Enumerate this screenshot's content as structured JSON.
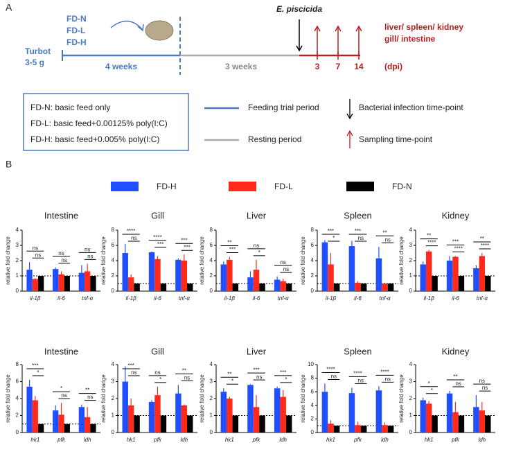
{
  "diagram": {
    "panel": "A",
    "fish": [
      "Turbot",
      "3-5 g"
    ],
    "groups": [
      "FD-N",
      "FD-L",
      "FD-H"
    ],
    "infection": "E. piscicida",
    "periods": [
      "4 weeks",
      "3 weeks"
    ],
    "days": [
      "3",
      "7",
      "14"
    ],
    "unit": "(dpi)",
    "tissues": [
      "liver/ spleen/ kidney",
      "gill/ intestine"
    ],
    "notes": [
      "FD-N: basic feed only",
      "FD-L: basic feed+0.00125% poly(I:C)",
      "FD-H: basic feed+0.005% poly(I:C)"
    ],
    "keys": [
      "Feeding trial period",
      "Resting  period",
      "Bacterial infection time-point",
      "Sampling time-point"
    ]
  },
  "panel_b": "B",
  "legend": [
    {
      "name": "FD-H",
      "color": "#1f4fff"
    },
    {
      "name": "FD-L",
      "color": "#ff2a1a"
    },
    {
      "name": "FD-N",
      "color": "#000000"
    }
  ],
  "chart_data": [
    {
      "type": "bar",
      "title": "Intestine",
      "ylabel": "relative fold change",
      "categories": [
        "il-1β",
        "il-6",
        "tnf-α"
      ],
      "ylim": [
        0,
        4
      ],
      "yticks": [
        0,
        1,
        2,
        3,
        4
      ],
      "refline": 1,
      "series": [
        {
          "values": [
            1.4,
            1.45,
            1.2
          ],
          "errors": [
            0.5,
            0.1,
            0.5
          ]
        },
        {
          "values": [
            0.8,
            1.1,
            1.3
          ],
          "errors": [
            0.05,
            0.2,
            0.5
          ]
        },
        {
          "values": [
            1,
            1,
            1
          ],
          "errors": [
            0,
            0,
            0
          ]
        }
      ],
      "brackets": [
        [
          {
            "text": "ns",
            "pair": [
              0,
              2
            ]
          },
          {
            "text": "ns",
            "pair": [
              1,
              2
            ]
          }
        ],
        [
          {
            "text": "ns",
            "pair": [
              0,
              2
            ]
          },
          {
            "text": "ns",
            "pair": [
              1,
              2
            ]
          }
        ],
        [
          {
            "text": "ns",
            "pair": [
              0,
              2
            ]
          },
          {
            "text": "ns",
            "pair": [
              1,
              2
            ]
          }
        ]
      ]
    },
    {
      "type": "bar",
      "title": "Gill",
      "ylabel": "relative fold change",
      "categories": [
        "il-1β",
        "il-6",
        "tnf-α"
      ],
      "ylim": [
        0,
        8
      ],
      "yticks": [
        0,
        2,
        4,
        6,
        8
      ],
      "refline": 1,
      "series": [
        {
          "values": [
            5.0,
            5.1,
            4.1
          ],
          "errors": [
            1.2,
            0.1,
            0.2
          ]
        },
        {
          "values": [
            1.8,
            4.2,
            4.0
          ],
          "errors": [
            0.4,
            0.4,
            0.8
          ]
        },
        {
          "values": [
            1,
            1,
            1
          ],
          "errors": [
            0,
            0,
            0
          ]
        }
      ],
      "brackets": [
        [
          {
            "text": "****",
            "pair": [
              0,
              2
            ]
          },
          {
            "text": "ns",
            "pair": [
              1,
              2
            ]
          }
        ],
        [
          {
            "text": "****",
            "pair": [
              0,
              2
            ]
          },
          {
            "text": "***",
            "pair": [
              1,
              2
            ]
          }
        ],
        [
          {
            "text": "***",
            "pair": [
              0,
              2
            ]
          },
          {
            "text": "***",
            "pair": [
              1,
              2
            ]
          }
        ]
      ]
    },
    {
      "type": "bar",
      "title": "Liver",
      "ylabel": "relative fold change",
      "categories": [
        "il-1β",
        "il-6",
        "tnf-α"
      ],
      "ylim": [
        0,
        8
      ],
      "yticks": [
        0,
        2,
        4,
        6,
        8
      ],
      "refline": 1,
      "series": [
        {
          "values": [
            3.5,
            1.8,
            1.5
          ],
          "errors": [
            0.4,
            0.8,
            0.4
          ]
        },
        {
          "values": [
            4.1,
            2.8,
            1.3
          ],
          "errors": [
            0.4,
            1.3,
            0.3
          ]
        },
        {
          "values": [
            1,
            1,
            1
          ],
          "errors": [
            0,
            0,
            0
          ]
        }
      ],
      "brackets": [
        [
          {
            "text": "**",
            "pair": [
              0,
              2
            ]
          },
          {
            "text": "***",
            "pair": [
              1,
              2
            ]
          }
        ],
        [
          {
            "text": "ns",
            "pair": [
              0,
              2
            ]
          },
          {
            "text": "*",
            "pair": [
              1,
              2
            ]
          }
        ],
        [
          {
            "text": "ns",
            "pair": [
              0,
              2
            ]
          },
          {
            "text": "ns",
            "pair": [
              1,
              2
            ]
          }
        ]
      ]
    },
    {
      "type": "bar",
      "title": "Spleen",
      "ylabel": "relative fold change",
      "categories": [
        "il-1β",
        "il-6",
        "tnf-α"
      ],
      "ylim": [
        0,
        8
      ],
      "yticks": [
        0,
        2,
        4,
        6,
        8
      ],
      "refline": 1,
      "series": [
        {
          "values": [
            6.4,
            5.9,
            4.3
          ],
          "errors": [
            0.3,
            0.7,
            1.5
          ]
        },
        {
          "values": [
            3.5,
            1.1,
            1.0
          ],
          "errors": [
            1.5,
            0.2,
            0.1
          ]
        },
        {
          "values": [
            1,
            1,
            1
          ],
          "errors": [
            0,
            0,
            0
          ]
        }
      ],
      "brackets": [
        [
          {
            "text": "***",
            "pair": [
              0,
              2
            ]
          },
          {
            "text": "*",
            "pair": [
              1,
              2
            ]
          }
        ],
        [
          {
            "text": "***",
            "pair": [
              0,
              2
            ]
          },
          {
            "text": "ns",
            "pair": [
              1,
              2
            ]
          }
        ],
        [
          {
            "text": "**",
            "pair": [
              0,
              2
            ]
          },
          {
            "text": "ns",
            "pair": [
              1,
              2
            ]
          }
        ]
      ]
    },
    {
      "type": "bar",
      "title": "Kidney",
      "ylabel": "relative fold change",
      "categories": [
        "il-1β",
        "il-6",
        "tnf-α"
      ],
      "ylim": [
        0,
        4
      ],
      "yticks": [
        0,
        1,
        2,
        3,
        4
      ],
      "refline": 1,
      "series": [
        {
          "values": [
            1.75,
            2.0,
            1.5
          ],
          "errors": [
            0.2,
            0.3,
            0.2
          ]
        },
        {
          "values": [
            2.6,
            2.25,
            2.3
          ],
          "errors": [
            0.1,
            0.05,
            0.2
          ]
        },
        {
          "values": [
            1,
            1,
            1
          ],
          "errors": [
            0,
            0,
            0
          ]
        }
      ],
      "brackets": [
        [
          {
            "text": "**",
            "pair": [
              0,
              2
            ]
          },
          {
            "text": "****",
            "pair": [
              1,
              2
            ]
          }
        ],
        [
          {
            "text": "***",
            "pair": [
              0,
              2
            ]
          },
          {
            "text": "****",
            "pair": [
              1,
              2
            ]
          }
        ],
        [
          {
            "text": "**",
            "pair": [
              0,
              2
            ]
          },
          {
            "text": "****",
            "pair": [
              1,
              2
            ]
          }
        ]
      ]
    },
    {
      "type": "bar",
      "title": "Intestine",
      "ylabel": "relative fold change",
      "categories": [
        "hk1",
        "pfk",
        "ldh"
      ],
      "ylim": [
        0,
        8
      ],
      "yticks": [
        0,
        2,
        4,
        6,
        8
      ],
      "refline": 1,
      "series": [
        {
          "values": [
            5.4,
            2.6,
            3.0
          ],
          "errors": [
            0.8,
            0.6,
            0.3
          ]
        },
        {
          "values": [
            3.8,
            2.1,
            1.8
          ],
          "errors": [
            0.5,
            1.4,
            1.2
          ]
        },
        {
          "values": [
            1,
            1,
            1
          ],
          "errors": [
            0,
            0,
            0
          ]
        }
      ],
      "brackets": [
        [
          {
            "text": "***",
            "pair": [
              0,
              2
            ]
          },
          {
            "text": "*",
            "pair": [
              1,
              2
            ]
          }
        ],
        [
          {
            "text": "*",
            "pair": [
              0,
              2
            ]
          },
          {
            "text": "ns",
            "pair": [
              1,
              2
            ]
          }
        ],
        [
          {
            "text": "**",
            "pair": [
              0,
              2
            ]
          },
          {
            "text": "ns",
            "pair": [
              1,
              2
            ]
          }
        ]
      ]
    },
    {
      "type": "bar",
      "title": "Gill",
      "ylabel": "relative fold change",
      "categories": [
        "hk1",
        "pfk",
        "ldh"
      ],
      "ylim": [
        0,
        4
      ],
      "yticks": [
        0,
        1,
        2,
        3,
        4
      ],
      "refline": 1,
      "series": [
        {
          "values": [
            3.0,
            1.8,
            2.3
          ],
          "errors": [
            0.9,
            0.1,
            0.5
          ]
        },
        {
          "values": [
            1.6,
            2.2,
            1.6
          ],
          "errors": [
            0.4,
            0.5,
            0.05
          ]
        },
        {
          "values": [
            1,
            1,
            1
          ],
          "errors": [
            0,
            0,
            0
          ]
        }
      ],
      "brackets": [
        [
          {
            "text": "***",
            "pair": [
              0,
              2
            ]
          },
          {
            "text": "ns",
            "pair": [
              1,
              2
            ]
          }
        ],
        [
          {
            "text": "ns",
            "pair": [
              0,
              2
            ]
          },
          {
            "text": "*",
            "pair": [
              1,
              2
            ]
          }
        ],
        [
          {
            "text": "**",
            "pair": [
              0,
              2
            ]
          },
          {
            "text": "ns",
            "pair": [
              1,
              2
            ]
          }
        ]
      ]
    },
    {
      "type": "bar",
      "title": "Liver",
      "ylabel": "relative fold change",
      "categories": [
        "hk1",
        "pfk",
        "ldh"
      ],
      "ylim": [
        0,
        4
      ],
      "yticks": [
        0,
        1,
        2,
        3,
        4
      ],
      "refline": 1,
      "series": [
        {
          "values": [
            2.4,
            2.8,
            2.6
          ],
          "errors": [
            0.2,
            0.05,
            0.1
          ]
        },
        {
          "values": [
            2.0,
            1.5,
            2.1
          ],
          "errors": [
            0.1,
            0.7,
            0.4
          ]
        },
        {
          "values": [
            1,
            1,
            1
          ],
          "errors": [
            0,
            0,
            0
          ]
        }
      ],
      "brackets": [
        [
          {
            "text": "**",
            "pair": [
              0,
              2
            ]
          },
          {
            "text": "*",
            "pair": [
              1,
              2
            ]
          }
        ],
        [
          {
            "text": "***",
            "pair": [
              0,
              2
            ]
          },
          {
            "text": "ns",
            "pair": [
              1,
              2
            ]
          }
        ],
        [
          {
            "text": "***",
            "pair": [
              0,
              2
            ]
          },
          {
            "text": "*",
            "pair": [
              1,
              2
            ]
          }
        ]
      ]
    },
    {
      "type": "bar",
      "title": "Spleen",
      "ylabel": "relative fold change",
      "categories": [
        "hk1",
        "pfk",
        "ldh"
      ],
      "ylim": [
        0,
        10
      ],
      "yticks": [
        0,
        2,
        4,
        6,
        8,
        10
      ],
      "refline": 1,
      "series": [
        {
          "values": [
            6.0,
            5.8,
            6.2
          ],
          "errors": [
            1.2,
            0.8,
            0.6
          ]
        },
        {
          "values": [
            1.3,
            1.1,
            1.1
          ],
          "errors": [
            0.5,
            0.5,
            0.4
          ]
        },
        {
          "values": [
            1,
            1,
            1
          ],
          "errors": [
            0,
            0,
            0
          ]
        }
      ],
      "brackets": [
        [
          {
            "text": "****",
            "pair": [
              0,
              2
            ]
          },
          {
            "text": "ns",
            "pair": [
              1,
              2
            ]
          }
        ],
        [
          {
            "text": "****",
            "pair": [
              0,
              2
            ]
          },
          {
            "text": "ns",
            "pair": [
              1,
              2
            ]
          }
        ],
        [
          {
            "text": "****",
            "pair": [
              0,
              2
            ]
          },
          {
            "text": "ns",
            "pair": [
              1,
              2
            ]
          }
        ]
      ]
    },
    {
      "type": "bar",
      "title": "Kidney",
      "ylabel": "relative fold change",
      "categories": [
        "hk1",
        "pfk",
        "ldh"
      ],
      "ylim": [
        0,
        4
      ],
      "yticks": [
        0,
        1,
        2,
        3,
        4
      ],
      "refline": 1,
      "series": [
        {
          "values": [
            1.9,
            2.3,
            1.5
          ],
          "errors": [
            0.15,
            0.15,
            0.7
          ]
        },
        {
          "values": [
            1.7,
            1.2,
            1.3
          ],
          "errors": [
            0.15,
            0.6,
            0.5
          ]
        },
        {
          "values": [
            1,
            1,
            1
          ],
          "errors": [
            0,
            0,
            0
          ]
        }
      ],
      "brackets": [
        [
          {
            "text": "*",
            "pair": [
              0,
              2
            ]
          },
          {
            "text": "*",
            "pair": [
              1,
              2
            ]
          }
        ],
        [
          {
            "text": "**",
            "pair": [
              0,
              2
            ]
          },
          {
            "text": "ns",
            "pair": [
              1,
              2
            ]
          }
        ],
        [
          {
            "text": "ns",
            "pair": [
              0,
              2
            ]
          },
          {
            "text": "ns",
            "pair": [
              1,
              2
            ]
          }
        ]
      ]
    }
  ]
}
